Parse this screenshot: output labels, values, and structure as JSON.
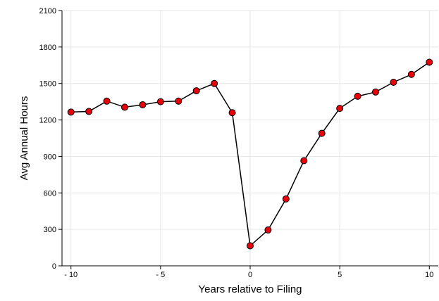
{
  "chart_data": {
    "type": "line",
    "xlabel": "Years relative to Filing",
    "ylabel": "Avg Annual Hours",
    "xlim": [
      -10.5,
      10.5
    ],
    "ylim": [
      0,
      2100
    ],
    "xticks": [
      -10,
      -5,
      0,
      5,
      10
    ],
    "xtick_labels": [
      "- 10",
      "- 5",
      "0",
      "5",
      "10"
    ],
    "yticks": [
      0,
      300,
      600,
      900,
      1200,
      1500,
      1800,
      2100
    ],
    "ytick_labels": [
      "0",
      "300",
      "600",
      "900",
      "1200",
      "1500",
      "1800",
      "2100"
    ],
    "grid": true,
    "colors": {
      "line": "#000000",
      "marker_fill": "#e8000b",
      "marker_edge": "#000000",
      "grid": "#e6e6e6"
    },
    "series": [
      {
        "x": [
          -10,
          -9,
          -8,
          -7,
          -6,
          -5,
          -4,
          -3,
          -2,
          -1,
          0,
          1,
          2,
          3,
          4,
          5,
          6,
          7,
          8,
          9,
          10
        ],
        "values": [
          1265,
          1270,
          1355,
          1305,
          1325,
          1350,
          1355,
          1440,
          1500,
          1260,
          165,
          295,
          550,
          865,
          1090,
          1295,
          1395,
          1430,
          1510,
          1575,
          1675
        ]
      }
    ]
  }
}
